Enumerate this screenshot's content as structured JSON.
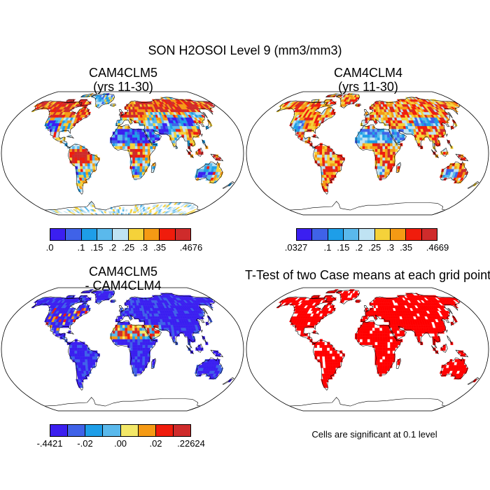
{
  "title": "SON H2OSOI Level 9 (mm3/mm3)",
  "panels": [
    {
      "id": "p1",
      "title_lines": [
        "CAM4CLM5",
        "(yrs 11-30)"
      ],
      "pattern": "clm5"
    },
    {
      "id": "p2",
      "title_lines": [
        "CAM4CLM4",
        "(yrs 11-30)"
      ],
      "pattern": "clm4"
    },
    {
      "id": "p3",
      "title_lines": [
        "CAM4CLM5",
        "- CAM4CLM4"
      ],
      "pattern": "diff"
    },
    {
      "id": "p4",
      "title_lines": [
        "T-Test of two Case means at each grid point"
      ],
      "pattern": "ttest"
    }
  ],
  "colorbars": [
    {
      "id": "cb1",
      "colors": [
        "#3b1ff0",
        "#3f62e8",
        "#1e9ee8",
        "#5ab9ec",
        "#bfe3f3",
        "#f5d23a",
        "#f59a14",
        "#f01c0c",
        "#cf2b2b"
      ],
      "labels": [
        ".0",
        ".1",
        ".15",
        ".2",
        ".25",
        ".3",
        ".35",
        ".4676"
      ]
    },
    {
      "id": "cb2",
      "colors": [
        "#3b1ff0",
        "#3f62e8",
        "#1e9ee8",
        "#5ab9ec",
        "#bfe3f3",
        "#f5d23a",
        "#f59a14",
        "#f01c0c",
        "#cf2b2b"
      ],
      "labels": [
        ".0327",
        ".1",
        ".15",
        ".2",
        ".25",
        ".3",
        ".35",
        ".4669"
      ]
    },
    {
      "id": "cb3",
      "colors": [
        "#3b1ff0",
        "#3f62e8",
        "#1e9ee8",
        "#5ab9ec",
        "#f3e868",
        "#f59a14",
        "#f01c0c",
        "#cf2b2b"
      ],
      "labels": [
        "-.4421",
        "-.02",
        ".00",
        ".02",
        ".22624"
      ]
    }
  ],
  "significance_note": "Cells are significant at 0.1 level",
  "chart_data": {
    "type": "heatmap",
    "title": "SON H2OSOI Level 9 (mm3/mm3)",
    "projection": "Robinson",
    "maps": [
      {
        "name": "CAM4CLM5 (yrs 11-30)",
        "range": [
          0.0,
          0.4676
        ],
        "levels": [
          0.1,
          0.15,
          0.2,
          0.25,
          0.3,
          0.35
        ]
      },
      {
        "name": "CAM4CLM4 (yrs 11-30)",
        "range": [
          0.0327,
          0.4669
        ],
        "levels": [
          0.1,
          0.15,
          0.2,
          0.25,
          0.3,
          0.35
        ]
      },
      {
        "name": "CAM4CLM5 - CAM4CLM4",
        "range": [
          -0.4421,
          0.22624
        ],
        "levels": [
          -0.02,
          0.0,
          0.02
        ]
      },
      {
        "name": "T-Test of two Case means at each grid point",
        "significance_level": 0.1
      }
    ]
  }
}
